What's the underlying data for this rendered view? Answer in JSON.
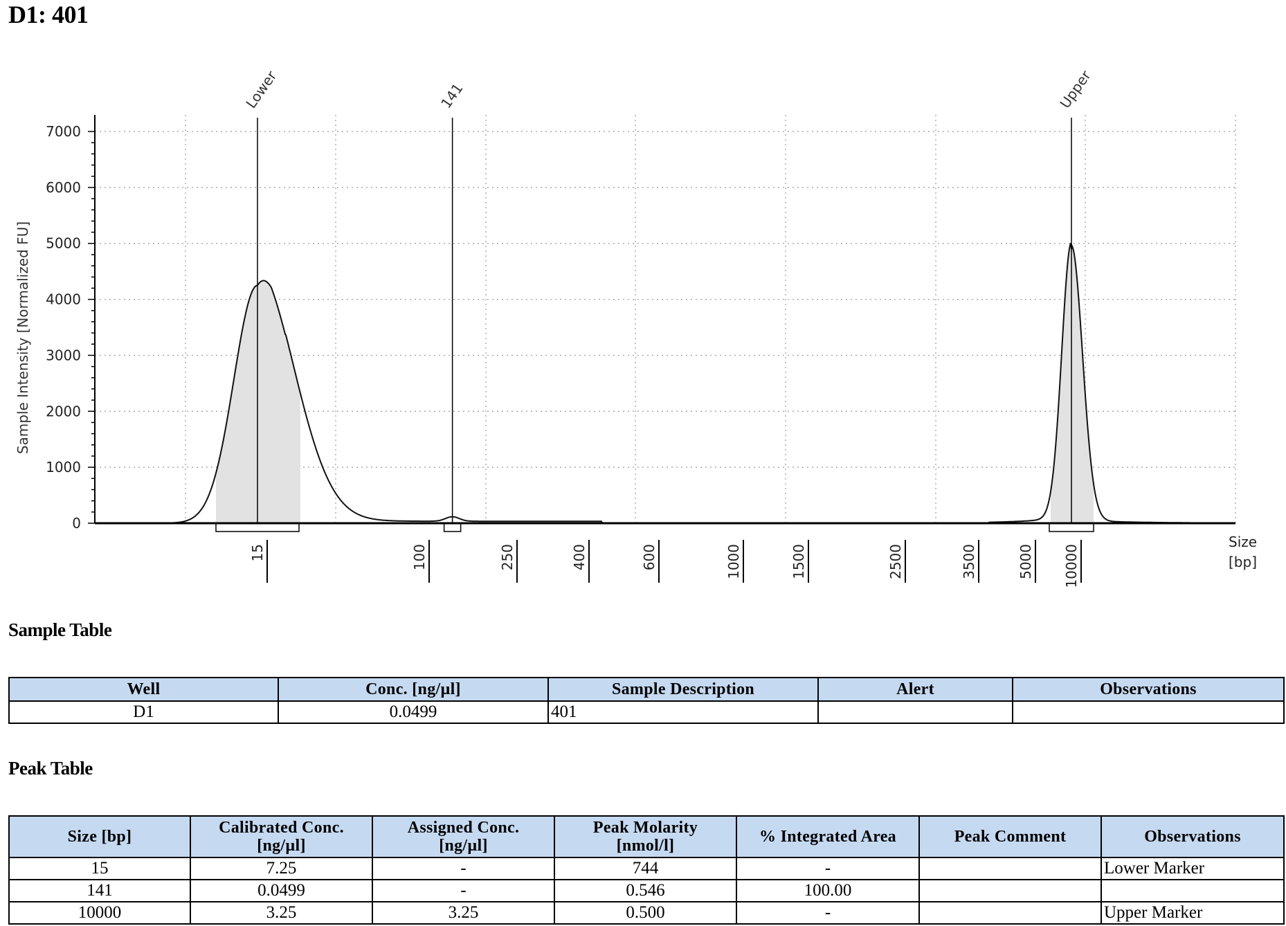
{
  "page_title": "D1: 401",
  "chart_data": {
    "type": "area",
    "ylabel": "Sample Intensity [Normalized FU]",
    "xlabel": "Size\n[bp]",
    "xlabel_lines": [
      "Size",
      "[bp]"
    ],
    "ylim": [
      0,
      7000
    ],
    "y_ticks": [
      0,
      1000,
      2000,
      3000,
      4000,
      5000,
      6000,
      7000
    ],
    "x_ticks": [
      "15",
      "100",
      "250",
      "400",
      "600",
      "1000",
      "1500",
      "2500",
      "3500",
      "5000",
      "10000"
    ],
    "x_scale": "ladder (non-linear)",
    "grid": true,
    "peak_labels": [
      "Lower",
      "141",
      "Upper"
    ],
    "peaks": [
      {
        "label": "Lower",
        "size_bp": 15,
        "height": 4250
      },
      {
        "label": "141",
        "size_bp": 141,
        "height": 80
      },
      {
        "label": "Upper",
        "size_bp": 10000,
        "height": 4900
      }
    ]
  },
  "sample_table": {
    "title": "Sample Table",
    "headers": [
      "Well",
      "Conc. [ng/µl]",
      "Sample Description",
      "Alert",
      "Observations"
    ],
    "rows": [
      [
        "D1",
        "0.0499",
        "401",
        "",
        ""
      ]
    ]
  },
  "peak_table": {
    "title": "Peak Table",
    "headers": [
      "Size [bp]",
      "Calibrated Conc. [ng/µl]",
      "Assigned Conc. [ng/µl]",
      "Peak Molarity [nmol/l]",
      "% Integrated Area",
      "Peak Comment",
      "Observations"
    ],
    "header_lines": [
      [
        "Size [bp]"
      ],
      [
        "Calibrated Conc.",
        "[ng/µl]"
      ],
      [
        "Assigned Conc.",
        "[ng/µl]"
      ],
      [
        "Peak Molarity",
        "[nmol/l]"
      ],
      [
        "% Integrated Area"
      ],
      [
        "Peak Comment"
      ],
      [
        "Observations"
      ]
    ],
    "rows": [
      [
        "15",
        "7.25",
        "-",
        "744",
        "-",
        "",
        "Lower Marker"
      ],
      [
        "141",
        "0.0499",
        "-",
        "0.546",
        "100.00",
        "",
        ""
      ],
      [
        "10000",
        "3.25",
        "3.25",
        "0.500",
        "-",
        "",
        "Upper Marker"
      ]
    ]
  }
}
